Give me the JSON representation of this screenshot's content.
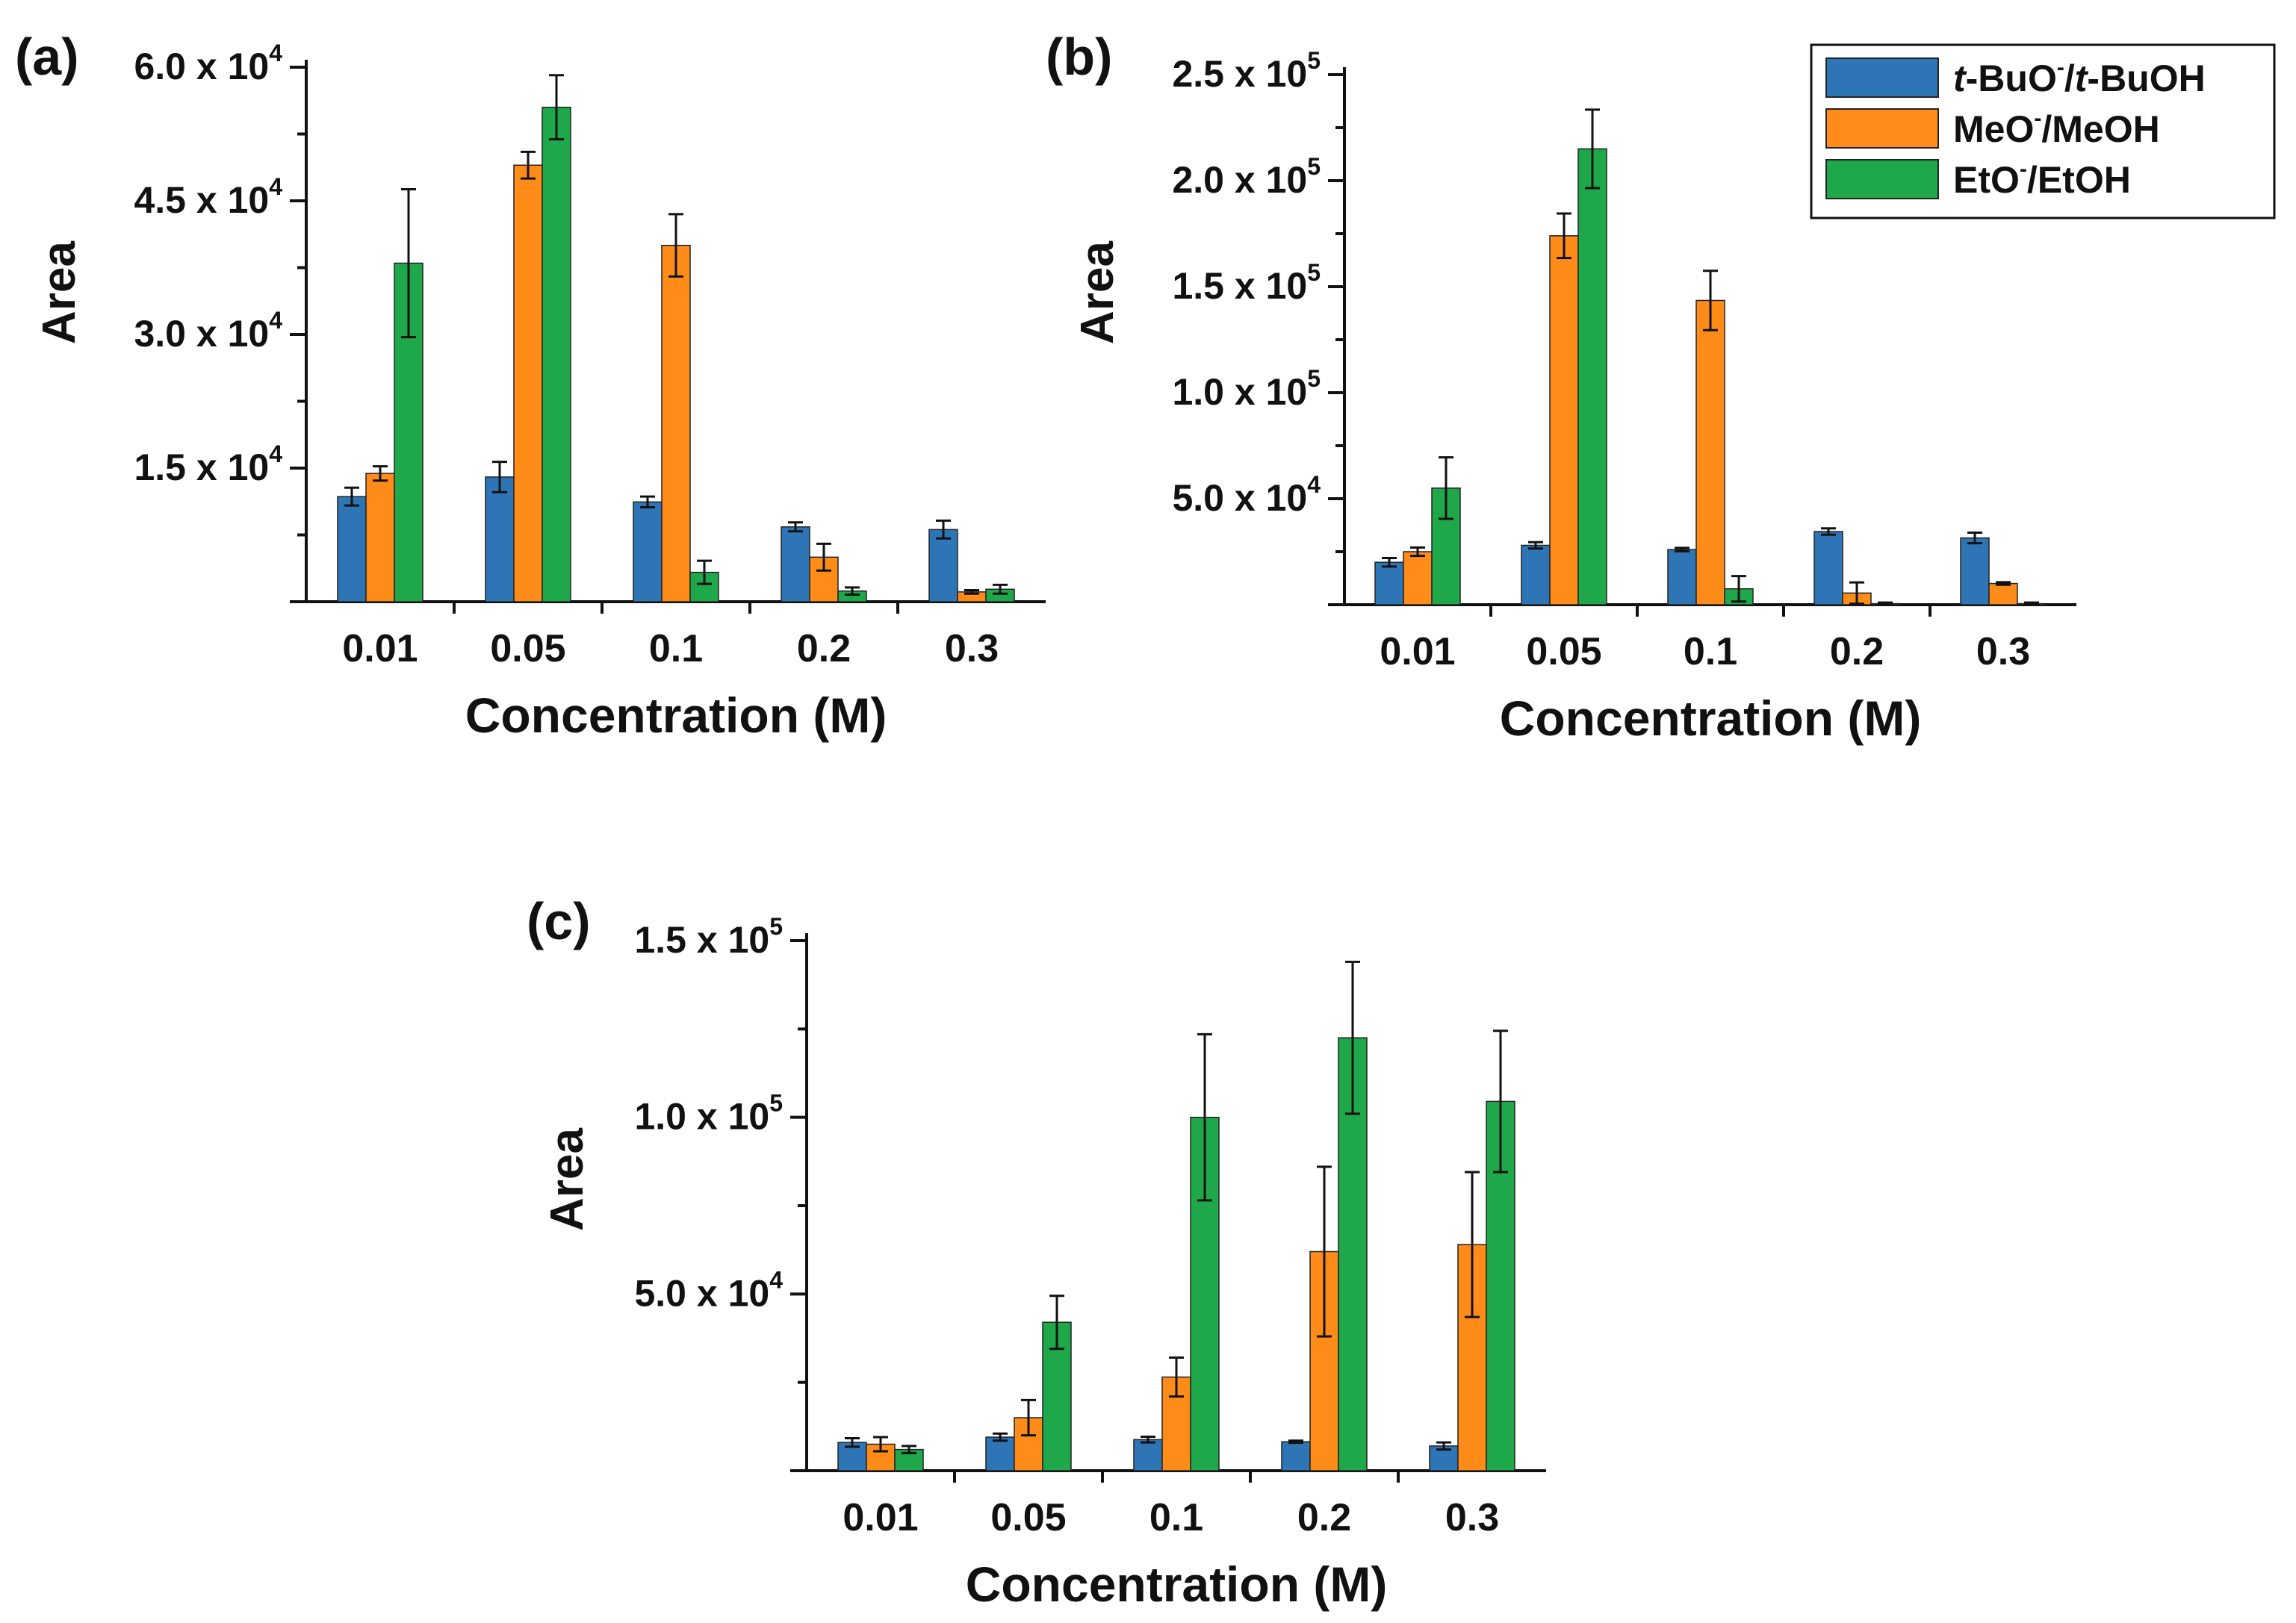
{
  "chart_data": [
    {
      "panel": "(a)",
      "type": "bar",
      "ylabel": "Area",
      "xlabel": "Concentration (M)",
      "ylim": [
        0,
        60000
      ],
      "yticks": [
        {
          "value": 15000,
          "mantissa": "1.5 x 10",
          "exp": "4"
        },
        {
          "value": 30000,
          "mantissa": "3.0 x 10",
          "exp": "4"
        },
        {
          "value": 45000,
          "mantissa": "4.5 x 10",
          "exp": "4"
        },
        {
          "value": 60000,
          "mantissa": "6.0 x 10",
          "exp": "4"
        }
      ],
      "categories": [
        "0.01",
        "0.05",
        "0.1",
        "0.2",
        "0.3"
      ],
      "series": [
        {
          "name": "t-BuO-/t-BuOH",
          "values": [
            11800,
            14000,
            11200,
            8400,
            8100
          ],
          "errors": [
            1000,
            1700,
            600,
            500,
            1000
          ]
        },
        {
          "name": "MeO-/MeOH",
          "values": [
            14400,
            49000,
            40000,
            5000,
            1100
          ],
          "errors": [
            800,
            1500,
            3500,
            1500,
            200
          ]
        },
        {
          "name": "EtO-/EtOH",
          "values": [
            38000,
            55500,
            3300,
            1200,
            1400
          ],
          "errors": [
            8300,
            3600,
            1300,
            400,
            500
          ]
        }
      ]
    },
    {
      "panel": "(b)",
      "type": "bar",
      "ylabel": "Area",
      "xlabel": "Concentration (M)",
      "ylim": [
        0,
        250000
      ],
      "yticks": [
        {
          "value": 50000,
          "mantissa": "5.0 x 10",
          "exp": "4"
        },
        {
          "value": 100000,
          "mantissa": "1.0 x 10",
          "exp": "5"
        },
        {
          "value": 150000,
          "mantissa": "1.5 x 10",
          "exp": "5"
        },
        {
          "value": 200000,
          "mantissa": "2.0 x 10",
          "exp": "5"
        },
        {
          "value": 250000,
          "mantissa": "2.5 x 10",
          "exp": "5"
        }
      ],
      "categories": [
        "0.01",
        "0.05",
        "0.1",
        "0.2",
        "0.3"
      ],
      "series": [
        {
          "name": "t-BuO-/t-BuOH",
          "values": [
            20000,
            28000,
            26000,
            34500,
            31500
          ],
          "errors": [
            2000,
            1500,
            800,
            1500,
            2500
          ]
        },
        {
          "name": "MeO-/MeOH",
          "values": [
            25000,
            174000,
            143500,
            5500,
            10000
          ],
          "errors": [
            2000,
            10500,
            14000,
            5000,
            600
          ]
        },
        {
          "name": "EtO-/EtOH",
          "values": [
            55000,
            215000,
            7500,
            500,
            500
          ],
          "errors": [
            14500,
            18500,
            6000,
            500,
            500
          ]
        }
      ]
    },
    {
      "panel": "(c)",
      "type": "bar",
      "ylabel": "Area",
      "xlabel": "Concentration (M)",
      "ylim": [
        0,
        150000
      ],
      "yticks": [
        {
          "value": 50000,
          "mantissa": "5.0 x 10",
          "exp": "4"
        },
        {
          "value": 100000,
          "mantissa": "1.0 x 10",
          "exp": "5"
        },
        {
          "value": 150000,
          "mantissa": "1.5 x 10",
          "exp": "5"
        }
      ],
      "categories": [
        "0.01",
        "0.05",
        "0.1",
        "0.2",
        "0.3"
      ],
      "series": [
        {
          "name": "t-BuO-/t-BuOH",
          "values": [
            8000,
            9500,
            8800,
            8200,
            7000
          ],
          "errors": [
            1200,
            1000,
            800,
            300,
            1000
          ]
        },
        {
          "name": "MeO-/MeOH",
          "values": [
            7500,
            15000,
            26500,
            62000,
            64000
          ],
          "errors": [
            2000,
            5000,
            5500,
            24000,
            20500
          ]
        },
        {
          "name": "EtO-/EtOH",
          "values": [
            6000,
            42000,
            100000,
            122500,
            104500
          ],
          "errors": [
            1000,
            7500,
            23500,
            21500,
            20000
          ]
        }
      ]
    }
  ],
  "legend": {
    "items": [
      {
        "prefix_italic": "t",
        "base": "-BuO",
        "sup": "-",
        "slash": "/",
        "prefix_italic2": "t",
        "tail": "-BuOH"
      },
      {
        "prefix_italic": "",
        "base": "MeO",
        "sup": "-",
        "slash": "/",
        "prefix_italic2": "",
        "tail": "MeOH"
      },
      {
        "prefix_italic": "",
        "base": "EtO",
        "sup": "-",
        "slash": "/",
        "prefix_italic2": "",
        "tail": "EtOH"
      }
    ]
  },
  "colors": {
    "series": [
      "#2e75b6",
      "#ff8c19",
      "#1ea84a"
    ],
    "axis": "#111111"
  }
}
